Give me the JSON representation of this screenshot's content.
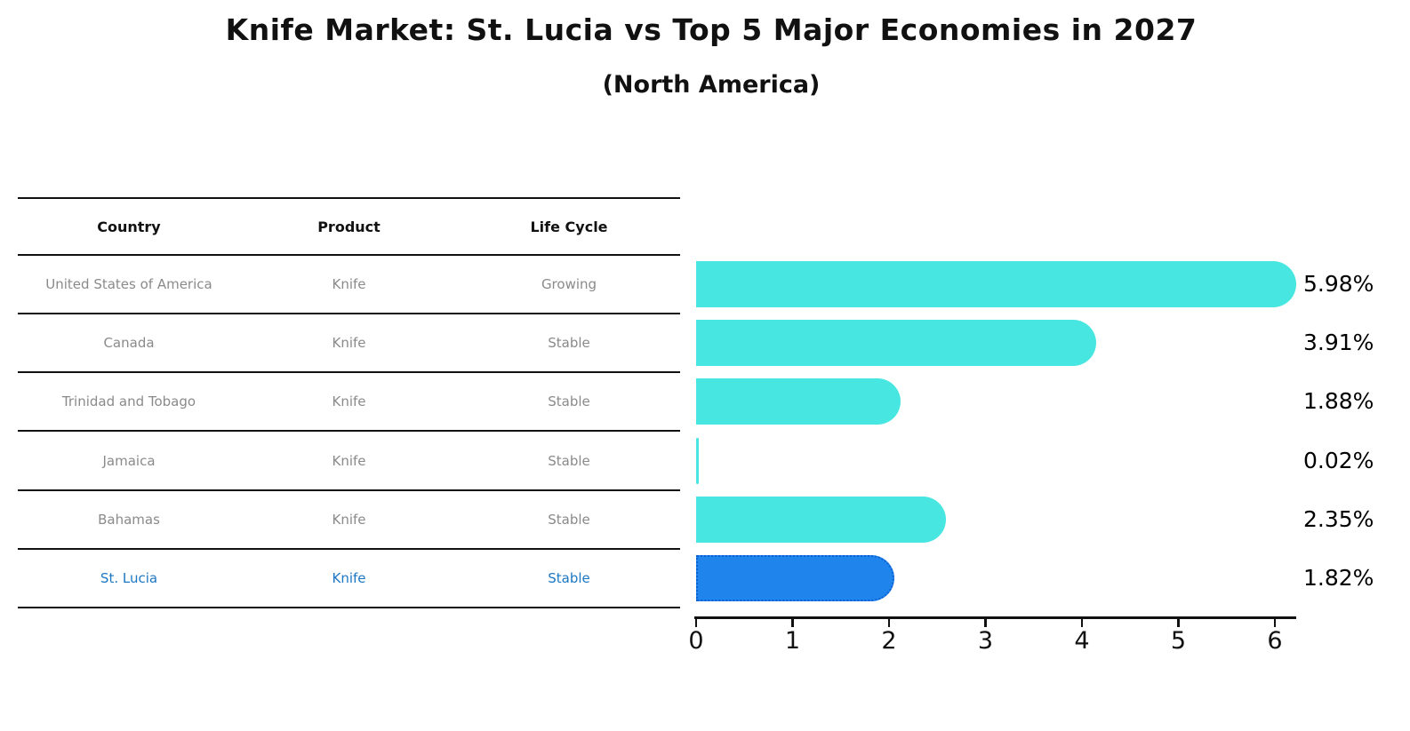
{
  "title": "Knife Market: St. Lucia vs Top 5 Major Economies in 2027",
  "subtitle": "(North America)",
  "table": {
    "headers": [
      "Country",
      "Product",
      "Life Cycle"
    ],
    "rows": [
      {
        "country": "United States of America",
        "product": "Knife",
        "life_cycle": "Growing",
        "highlighted": false
      },
      {
        "country": "Canada",
        "product": "Knife",
        "life_cycle": "Stable",
        "highlighted": false
      },
      {
        "country": "Trinidad and Tobago",
        "product": "Knife",
        "life_cycle": "Stable",
        "highlighted": false
      },
      {
        "country": "Jamaica",
        "product": "Knife",
        "life_cycle": "Stable",
        "highlighted": false
      },
      {
        "country": "Bahamas",
        "product": "Knife",
        "life_cycle": "Stable",
        "highlighted": false
      },
      {
        "country": "St. Lucia",
        "product": "Knife",
        "life_cycle": "Stable",
        "highlighted": true
      }
    ]
  },
  "chart_data": {
    "type": "bar",
    "orientation": "horizontal",
    "title": "Knife Market: St. Lucia vs Top 5 Major Economies in 2027",
    "subtitle": "(North America)",
    "categories": [
      "United States of America",
      "Canada",
      "Trinidad and Tobago",
      "Jamaica",
      "Bahamas",
      "St. Lucia"
    ],
    "values": [
      5.98,
      3.91,
      1.88,
      0.02,
      2.35,
      1.82
    ],
    "value_labels": [
      "5.98%",
      "3.91%",
      "1.88%",
      "0.02%",
      "2.35%",
      "1.82%"
    ],
    "x_ticks": [
      "0",
      "1",
      "2",
      "3",
      "4",
      "5",
      "6"
    ],
    "xlim": [
      0,
      6
    ],
    "xlabel": "",
    "ylabel": "",
    "grid": false,
    "legend": false,
    "highlight_index": 5
  },
  "colors": {
    "background": "#FFFFFF",
    "bar": "#47E6E1",
    "highlight_bar": "#1F85EC",
    "highlight_border": "#0D5FD6",
    "highlight_text": "#1C77C2",
    "row_text": "#8A8A8A",
    "header_text": "#111111",
    "axis": "#111111",
    "value_label": "#000000"
  }
}
